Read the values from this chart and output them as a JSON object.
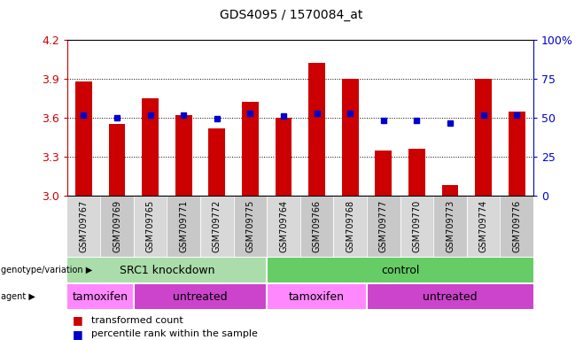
{
  "title": "GDS4095 / 1570084_at",
  "samples": [
    "GSM709767",
    "GSM709769",
    "GSM709765",
    "GSM709771",
    "GSM709772",
    "GSM709775",
    "GSM709764",
    "GSM709766",
    "GSM709768",
    "GSM709777",
    "GSM709770",
    "GSM709773",
    "GSM709774",
    "GSM709776"
  ],
  "bar_values": [
    3.88,
    3.55,
    3.75,
    3.62,
    3.52,
    3.72,
    3.6,
    4.02,
    3.9,
    3.35,
    3.36,
    3.08,
    3.9,
    3.65
  ],
  "dot_values": [
    3.62,
    3.6,
    3.62,
    3.62,
    3.59,
    3.63,
    3.61,
    3.63,
    3.63,
    3.58,
    3.58,
    3.56,
    3.62,
    3.62
  ],
  "bar_color": "#cc0000",
  "dot_color": "#0000cc",
  "ymin": 3.0,
  "ymax": 4.2,
  "y_ticks": [
    3.0,
    3.3,
    3.6,
    3.9,
    4.2
  ],
  "right_ytick_labels": [
    "0",
    "25",
    "50",
    "75",
    "100%"
  ],
  "right_ytick_pcts": [
    0,
    25,
    50,
    75,
    100
  ],
  "genotype_groups": [
    {
      "label": "SRC1 knockdown",
      "start": 0,
      "end": 6,
      "color": "#aaddaa"
    },
    {
      "label": "control",
      "start": 6,
      "end": 14,
      "color": "#66cc66"
    }
  ],
  "agent_groups": [
    {
      "label": "tamoxifen",
      "start": 0,
      "end": 2,
      "color": "#ff88ff"
    },
    {
      "label": "untreated",
      "start": 2,
      "end": 6,
      "color": "#cc44cc"
    },
    {
      "label": "tamoxifen",
      "start": 6,
      "end": 9,
      "color": "#ff88ff"
    },
    {
      "label": "untreated",
      "start": 9,
      "end": 14,
      "color": "#cc44cc"
    }
  ],
  "legend_items": [
    {
      "label": "transformed count",
      "color": "#cc0000"
    },
    {
      "label": "percentile rank within the sample",
      "color": "#0000cc"
    }
  ],
  "genotype_label": "genotype/variation",
  "agent_label": "agent",
  "tick_bg_color_even": "#d8d8d8",
  "tick_bg_color_odd": "#c8c8c8",
  "grid_lines": [
    3.3,
    3.6,
    3.9
  ],
  "bar_width": 0.5
}
